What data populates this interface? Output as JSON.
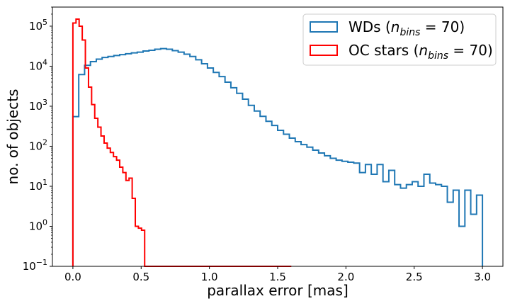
{
  "chart_data": {
    "type": "step-histogram",
    "title": "",
    "xlabel": "parallax error [mas]",
    "ylabel": "no. of objects",
    "yscale": "log",
    "xlim": [
      -0.15,
      3.15
    ],
    "ylim": [
      0.1,
      300000
    ],
    "x_ticks": [
      0.0,
      0.5,
      1.0,
      1.5,
      2.0,
      2.5,
      3.0
    ],
    "x_tick_labels": [
      "0.0",
      "0.5",
      "1.0",
      "1.5",
      "2.0",
      "2.5",
      "3.0"
    ],
    "y_ticks": [
      0.1,
      1,
      10,
      100,
      1000,
      10000,
      100000
    ],
    "y_tick_labels": [
      {
        "base": "10",
        "exp": "−1"
      },
      {
        "base": "10",
        "exp": "0"
      },
      {
        "base": "10",
        "exp": "1"
      },
      {
        "base": "10",
        "exp": "2"
      },
      {
        "base": "10",
        "exp": "3"
      },
      {
        "base": "10",
        "exp": "4"
      },
      {
        "base": "10",
        "exp": "5"
      }
    ],
    "legend_position": "top-right",
    "series": [
      {
        "name": "WDs",
        "legend_main": "WDs (",
        "legend_n": "n",
        "legend_sub": "bins",
        "legend_tail": " = 70)",
        "color": "#1f77b4",
        "bin_edges": [
          0.0,
          3.0
        ],
        "counts": [
          550,
          6200,
          10500,
          13000,
          15000,
          16500,
          17500,
          18500,
          19500,
          20500,
          21500,
          22500,
          24000,
          25000,
          26500,
          27500,
          26500,
          24500,
          22500,
          20000,
          17500,
          14500,
          11500,
          9000,
          7000,
          5500,
          4000,
          2900,
          2100,
          1500,
          1050,
          760,
          560,
          420,
          330,
          250,
          200,
          160,
          130,
          110,
          95,
          80,
          68,
          58,
          50,
          45,
          42,
          40,
          38,
          22,
          35,
          20,
          35,
          13,
          25,
          11,
          9,
          11,
          13,
          10,
          20,
          12,
          11,
          10,
          4,
          8,
          1,
          8,
          2,
          6
        ]
      },
      {
        "name": "OC stars",
        "legend_main": "OC stars (",
        "legend_n": "n",
        "legend_sub": "bins",
        "legend_tail": " = 70)",
        "color": "#ff0000",
        "bin_edges": [
          0.0,
          1.6
        ],
        "counts": [
          120000,
          150000,
          100000,
          45000,
          9000,
          3000,
          1100,
          500,
          300,
          180,
          120,
          90,
          70,
          55,
          45,
          30,
          22,
          14,
          16,
          5,
          1,
          0.9,
          0.8,
          0.1,
          0.1,
          0.1,
          0.1,
          0.1,
          0.1,
          0.1,
          0.1,
          0.1,
          0.1,
          0.1,
          0.1,
          0.1,
          0.1,
          0.1,
          0.1,
          0.1,
          0.1,
          0.1,
          0.1,
          0.1,
          0.1,
          0.1,
          0.1,
          0.1,
          0.1,
          0.1,
          0.1,
          0.1,
          0.1,
          0.1,
          0.1,
          0.1,
          0.1,
          0.1,
          0.1,
          0.1,
          0.1,
          0.1,
          0.1,
          0.1,
          0.1,
          0.1,
          0.1,
          0.1,
          0.1,
          0.1
        ]
      }
    ]
  }
}
